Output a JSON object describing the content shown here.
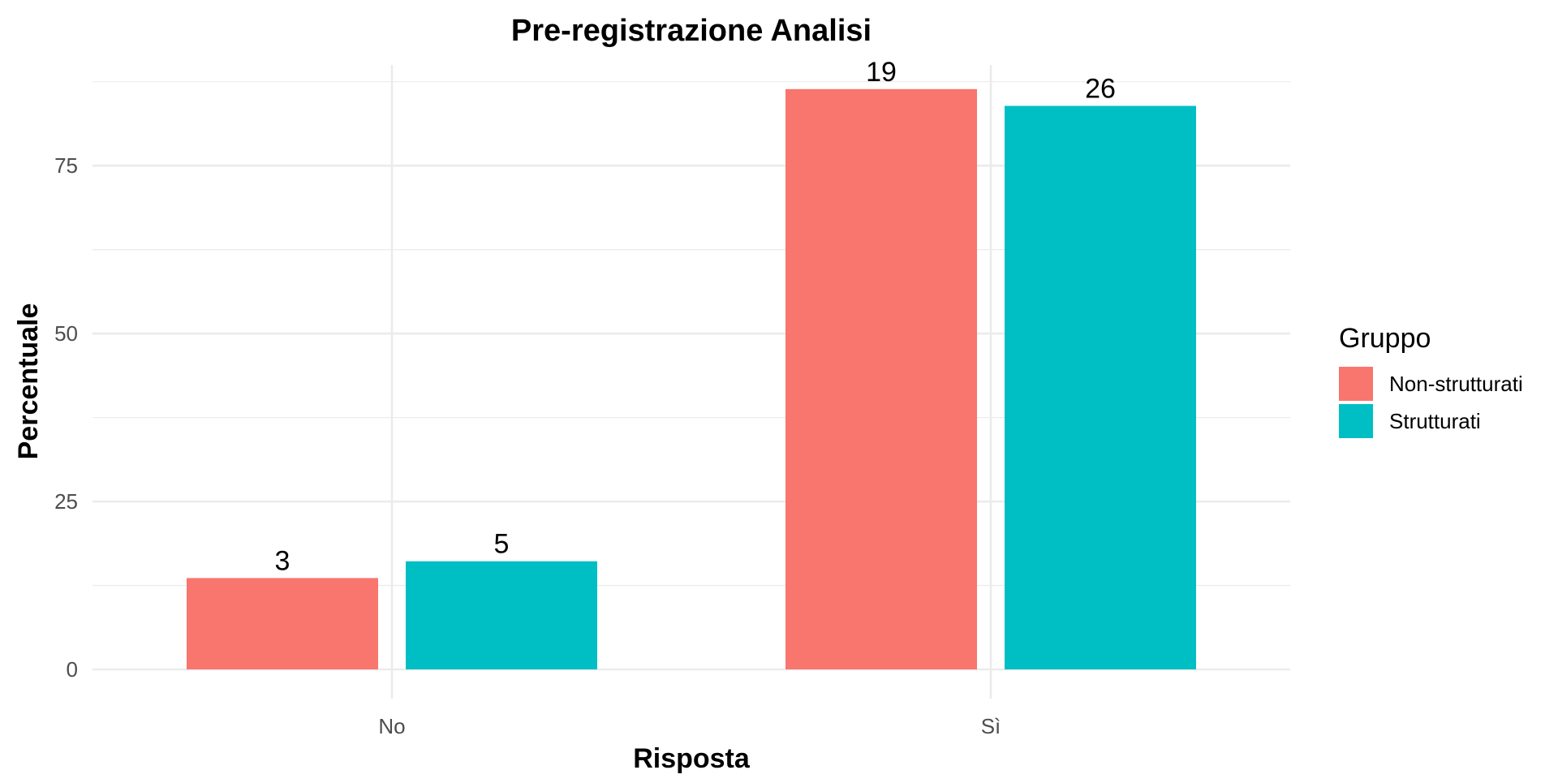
{
  "chart_data": {
    "type": "bar",
    "title": "Pre-registrazione Analisi",
    "xlabel": "Risposta",
    "ylabel": "Percentuale",
    "categories": [
      "No",
      "Sì"
    ],
    "series": [
      {
        "name": "Non-strutturati",
        "color": "#F8766D",
        "values": [
          13.6,
          86.4
        ],
        "labels": [
          "3",
          "19"
        ]
      },
      {
        "name": "Strutturati",
        "color": "#00BFC4",
        "values": [
          16.1,
          83.9
        ],
        "labels": [
          "5",
          "26"
        ]
      }
    ],
    "ylim": [
      0,
      90
    ],
    "yticks": [
      0,
      25,
      50,
      75
    ],
    "grid": true,
    "legend": {
      "title": "Gruppo",
      "position": "right"
    }
  }
}
